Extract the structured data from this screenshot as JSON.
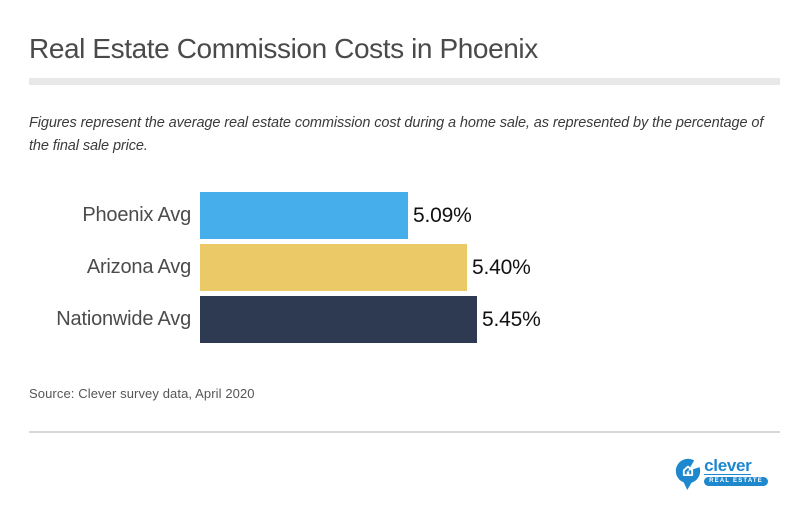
{
  "header": {
    "title": "Real Estate Commission Costs in Phoenix",
    "subtitle": "Figures represent the average real estate commission cost during a home sale, as represented by the percentage of the final sale price."
  },
  "chart_data": {
    "type": "bar",
    "orientation": "horizontal",
    "title": "Real Estate Commission Costs in Phoenix",
    "categories": [
      "Phoenix Avg",
      "Arizona Avg",
      "Nationwide Avg"
    ],
    "values": [
      5.09,
      5.4,
      5.45
    ],
    "value_labels": [
      "5.09%",
      "5.40%",
      "5.45%"
    ],
    "bar_colors": [
      "#45AEEB",
      "#ECC967",
      "#2E3A52"
    ],
    "xlim": [
      4.0,
      5.45
    ],
    "xlabel": "",
    "ylabel": "",
    "grid": false,
    "legend": false
  },
  "footer": {
    "source": "Source: Clever survey data, April 2020",
    "logo": {
      "wordmark": "clever",
      "tagline": "REAL ESTATE",
      "color": "#1E88CF"
    }
  }
}
